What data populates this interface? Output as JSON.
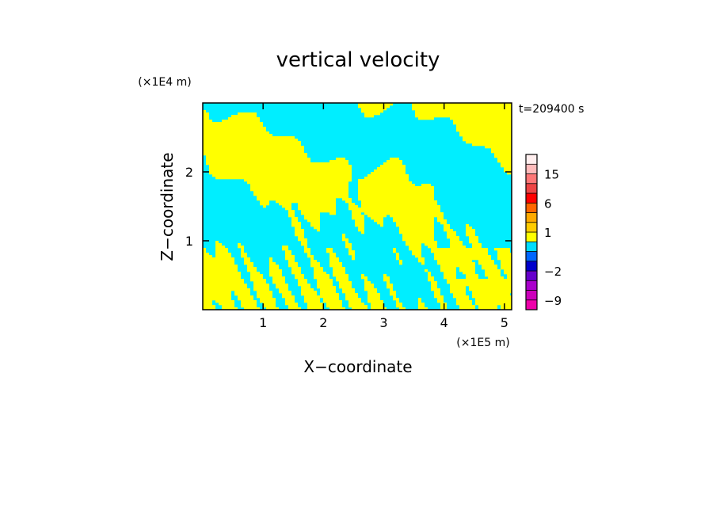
{
  "chart_data": {
    "type": "heatmap",
    "title": "vertical velocity",
    "xlabel": "X−coordinate",
    "ylabel": "Z−coordinate",
    "x_unit_label": "(×1E5 m)",
    "y_unit_label": "(×1E4 m)",
    "time_label": "t=209400 s",
    "xlim": [
      0,
      5.12
    ],
    "ylim": [
      0,
      3
    ],
    "x_ticks": [
      1,
      2,
      3,
      4,
      5
    ],
    "x_tick_labels": [
      "1",
      "2",
      "3",
      "4",
      "5"
    ],
    "y_ticks": [
      1,
      2
    ],
    "y_tick_labels": [
      "1",
      "2"
    ],
    "field_colors": {
      "updraft": "#ffff00",
      "downdraft": "#00eeff"
    },
    "colorbar": {
      "levels": [
        -12,
        -9,
        -6,
        -4,
        -2,
        -1,
        0,
        0.5,
        1,
        2,
        4,
        6,
        9,
        12,
        15,
        20,
        24
      ],
      "colors": [
        "#ee00aa",
        "#cc00bb",
        "#aa00cc",
        "#6600cc",
        "#0000cc",
        "#0066ff",
        "#00ddff",
        "#ffff00",
        "#ffcc00",
        "#ffaa00",
        "#ff6600",
        "#ff0000",
        "#ee4444",
        "#ff7777",
        "#ffbbbb",
        "#ffeeee"
      ],
      "tick_values": [
        -9,
        -2,
        1,
        6,
        15
      ],
      "tick_labels": [
        "−9",
        "−2",
        "1",
        "6",
        "15"
      ]
    }
  }
}
